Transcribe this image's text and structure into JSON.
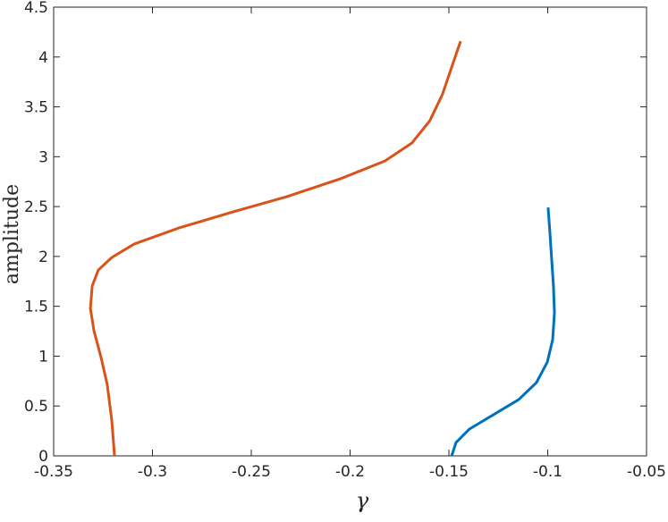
{
  "chart_data": {
    "type": "line",
    "xlabel": "γ",
    "ylabel": "amplitude",
    "xlim": [
      -0.35,
      -0.05
    ],
    "xticks": [
      -0.35,
      -0.3,
      -0.25,
      -0.2,
      -0.15,
      -0.1,
      -0.05
    ],
    "ylim": [
      0,
      4.5
    ],
    "yticks": [
      0,
      0.5,
      1,
      1.5,
      2,
      2.5,
      3,
      3.5,
      4,
      4.5
    ],
    "grid": false,
    "box": true,
    "series": [
      {
        "color": "#0072bd",
        "x": [
          -0.1486,
          -0.1464,
          -0.1396,
          -0.1283,
          -0.1147,
          -0.1057,
          -0.1002,
          -0.0975,
          -0.0966,
          -0.0971,
          -0.098,
          -0.0989,
          -0.0998
        ],
        "values": [
          0,
          0.134,
          0.269,
          0.403,
          0.564,
          0.735,
          0.941,
          1.165,
          1.434,
          1.703,
          1.971,
          2.24,
          2.491
        ]
      },
      {
        "color": "#d95319",
        "x": [
          -0.3192,
          -0.3206,
          -0.3229,
          -0.326,
          -0.3296,
          -0.3314,
          -0.3305,
          -0.3274,
          -0.3206,
          -0.3093,
          -0.2867,
          -0.2595,
          -0.2321,
          -0.205,
          -0.1824,
          -0.1688,
          -0.1597,
          -0.1532,
          -0.1486,
          -0.1441
        ],
        "values": [
          0,
          0.358,
          0.717,
          0.986,
          1.254,
          1.478,
          1.703,
          1.864,
          1.989,
          2.124,
          2.285,
          2.446,
          2.599,
          2.778,
          2.957,
          3.136,
          3.36,
          3.629,
          3.898,
          4.158
        ]
      }
    ]
  }
}
